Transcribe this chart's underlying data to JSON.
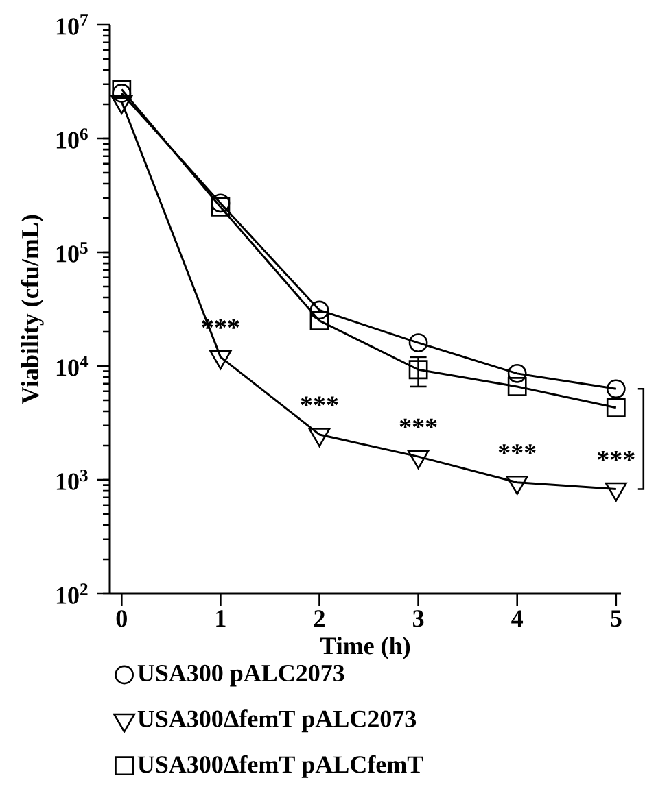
{
  "chart_data": {
    "type": "line",
    "xlabel": "Time (h)",
    "ylabel": "Viability (cfu/mL)",
    "x": [
      0,
      1,
      2,
      3,
      4,
      5
    ],
    "series": [
      {
        "name": "USA300 pALC2073",
        "color": "#000000",
        "marker": "circle",
        "values": [
          2500000,
          270000,
          31000,
          16000,
          8600,
          6300
        ]
      },
      {
        "name": "USA300ΔfemT pALC2073",
        "color": "#000000",
        "marker": "triangle",
        "values": [
          2100000,
          12000,
          2500,
          1600,
          950,
          830
        ]
      },
      {
        "name": "USA300ΔfemT pALCfemT",
        "color": "#000000",
        "marker": "square",
        "values": [
          2700000,
          250000,
          25000,
          9300,
          6600,
          4300
        ],
        "errors": [
          null,
          null,
          null,
          [
            6600,
            12000
          ],
          null,
          null
        ]
      }
    ],
    "annotations": [
      {
        "text": "***",
        "x": 1,
        "y": 12000
      },
      {
        "text": "***",
        "x": 2,
        "y": 2500
      },
      {
        "text": "***",
        "x": 3,
        "y": 1600
      },
      {
        "text": "***",
        "x": 4,
        "y": 950
      },
      {
        "text": "***",
        "x": 5,
        "y": 830
      }
    ],
    "xlim": [
      -0.12,
      5.05
    ],
    "xticks": [
      0,
      1,
      2,
      3,
      4,
      5
    ],
    "ylim": [
      100,
      10000000
    ],
    "yticks": [
      {
        "value": 100,
        "label": "10$^{2}$"
      },
      {
        "value": 1000,
        "label": "10$^{3}$"
      },
      {
        "value": 10000,
        "label": "10$^{4}$"
      },
      {
        "value": 100000,
        "label": "10$^{5}$"
      },
      {
        "value": 1000000,
        "label": "10$^{6}$"
      },
      {
        "value": 10000000,
        "label": "10$^{7}$"
      }
    ],
    "log": "y",
    "legend": "bottom",
    "line_style": "solid"
  }
}
